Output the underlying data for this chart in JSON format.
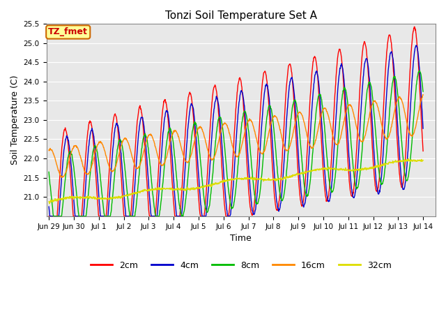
{
  "title": "Tonzi Soil Temperature Set A",
  "ylabel": "Soil Temperature (C)",
  "xlabel": "Time",
  "ylim": [
    20.5,
    25.5
  ],
  "yticks": [
    21.0,
    21.5,
    22.0,
    22.5,
    23.0,
    23.5,
    24.0,
    24.5,
    25.0,
    25.5
  ],
  "annotation": "TZ_fmet",
  "annotation_facecolor": "#FFFF99",
  "annotation_edgecolor": "#CC6600",
  "bg_color": "#E8E8E8",
  "line_colors": {
    "2cm": "#FF0000",
    "4cm": "#0000CC",
    "8cm": "#00BB00",
    "16cm": "#FF8800",
    "32cm": "#DDDD00"
  },
  "tick_labels": [
    "Jun 29",
    "Jun 30",
    "Jul 1",
    "Jul 2",
    "Jul 3",
    "Jul 4",
    "Jul 5",
    "Jul 6",
    "Jul 7",
    "Jul 8",
    "Jul 9",
    "Jul 10",
    "Jul 11",
    "Jul 12",
    "Jul 13",
    "Jul 14"
  ]
}
